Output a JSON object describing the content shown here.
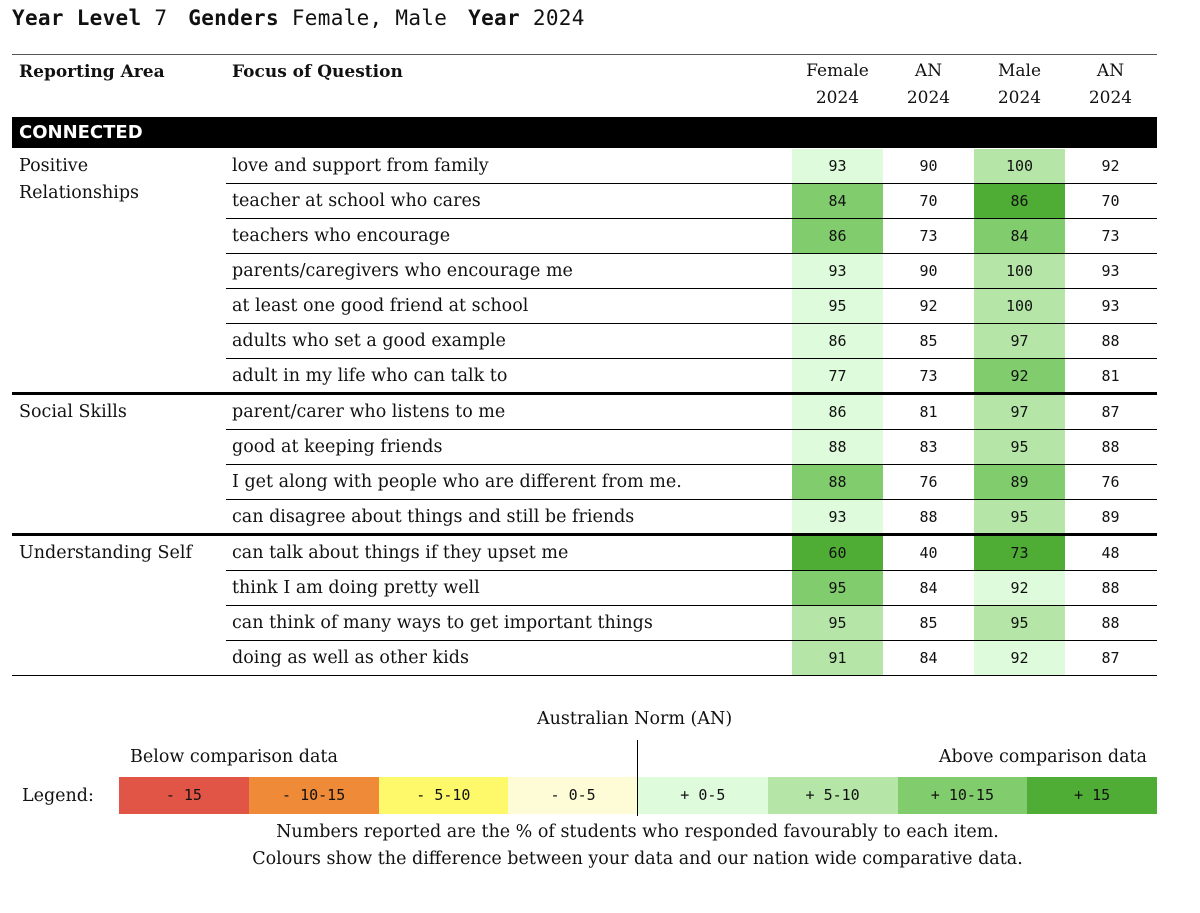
{
  "filters": [
    {
      "key": "Year Level",
      "value": "7"
    },
    {
      "key": "Genders",
      "value": "Female, Male"
    },
    {
      "key": "Year",
      "value": "2024"
    }
  ],
  "header": {
    "reporting_area": "Reporting Area",
    "focus": "Focus of Question",
    "columns": [
      {
        "line1": "Female",
        "line2": "2024"
      },
      {
        "line1": "AN",
        "line2": "2024"
      },
      {
        "line1": "Male",
        "line2": "2024"
      },
      {
        "line1": "AN",
        "line2": "2024"
      }
    ]
  },
  "section": "CONNECTED",
  "colors": {
    "minus15": "#e05545",
    "minus10_15": "#ef8a38",
    "minus5_10": "#fdf96b",
    "minus0_5": "#fdfcd6",
    "plus0_5": "#defbdb",
    "plus5_10": "#b5e6a8",
    "plus10_15": "#81cd6d",
    "plus15": "#4fad36"
  },
  "areas": [
    {
      "name": "Positive\nRelationships",
      "rows": [
        {
          "q": "love and support from family",
          "female": "93",
          "an_f": "90",
          "male": "100",
          "an_m": "92",
          "fc": "plus0_5",
          "mc": "plus5_10"
        },
        {
          "q": "teacher at school who cares",
          "female": "84",
          "an_f": "70",
          "male": "86",
          "an_m": "70",
          "fc": "plus10_15",
          "mc": "plus15"
        },
        {
          "q": "teachers who encourage",
          "female": "86",
          "an_f": "73",
          "male": "84",
          "an_m": "73",
          "fc": "plus10_15",
          "mc": "plus10_15"
        },
        {
          "q": "parents/caregivers who encourage me",
          "female": "93",
          "an_f": "90",
          "male": "100",
          "an_m": "93",
          "fc": "plus0_5",
          "mc": "plus5_10"
        },
        {
          "q": "at least one good friend at school",
          "female": "95",
          "an_f": "92",
          "male": "100",
          "an_m": "93",
          "fc": "plus0_5",
          "mc": "plus5_10"
        },
        {
          "q": "adults who set a good example",
          "female": "86",
          "an_f": "85",
          "male": "97",
          "an_m": "88",
          "fc": "plus0_5",
          "mc": "plus5_10"
        },
        {
          "q": "adult in my life who can talk to",
          "female": "77",
          "an_f": "73",
          "male": "92",
          "an_m": "81",
          "fc": "plus0_5",
          "mc": "plus10_15"
        }
      ]
    },
    {
      "name": "Social Skills",
      "rows": [
        {
          "q": "parent/carer who listens to me",
          "female": "86",
          "an_f": "81",
          "male": "97",
          "an_m": "87",
          "fc": "plus0_5",
          "mc": "plus5_10"
        },
        {
          "q": "good at keeping friends",
          "female": "88",
          "an_f": "83",
          "male": "95",
          "an_m": "88",
          "fc": "plus0_5",
          "mc": "plus5_10"
        },
        {
          "q": "I get along with people who are different from me.",
          "female": "88",
          "an_f": "76",
          "male": "89",
          "an_m": "76",
          "fc": "plus10_15",
          "mc": "plus10_15"
        },
        {
          "q": "can disagree about things and still be friends",
          "female": "93",
          "an_f": "88",
          "male": "95",
          "an_m": "89",
          "fc": "plus0_5",
          "mc": "plus5_10"
        }
      ]
    },
    {
      "name": "Understanding Self",
      "rows": [
        {
          "q": "can talk about things if they upset me",
          "female": "60",
          "an_f": "40",
          "male": "73",
          "an_m": "48",
          "fc": "plus15",
          "mc": "plus15"
        },
        {
          "q": "think I am doing pretty well",
          "female": "95",
          "an_f": "84",
          "male": "92",
          "an_m": "88",
          "fc": "plus10_15",
          "mc": "plus0_5"
        },
        {
          "q": "can think of many ways to get important things",
          "female": "95",
          "an_f": "85",
          "male": "95",
          "an_m": "88",
          "fc": "plus5_10",
          "mc": "plus5_10"
        },
        {
          "q": "doing as well as other kids",
          "female": "91",
          "an_f": "84",
          "male": "92",
          "an_m": "87",
          "fc": "plus5_10",
          "mc": "plus0_5"
        }
      ]
    }
  ],
  "legend": {
    "label": "Legend:",
    "an_label": "Australian Norm (AN)",
    "below": "Below comparison data",
    "above": "Above comparison data",
    "swatches": [
      {
        "text": "- 15",
        "color_key": "minus15"
      },
      {
        "text": "- 10-15",
        "color_key": "minus10_15"
      },
      {
        "text": "- 5-10",
        "color_key": "minus5_10"
      },
      {
        "text": "- 0-5",
        "color_key": "minus0_5"
      },
      {
        "text": "+ 0-5",
        "color_key": "plus0_5"
      },
      {
        "text": "+ 5-10",
        "color_key": "plus5_10"
      },
      {
        "text": "+ 10-15",
        "color_key": "plus10_15"
      },
      {
        "text": "+ 15",
        "color_key": "plus15"
      }
    ]
  },
  "notes": [
    "Numbers reported are the % of students who responded favourably to each item.",
    "Colours show the difference between your data and our nation wide comparative data."
  ]
}
